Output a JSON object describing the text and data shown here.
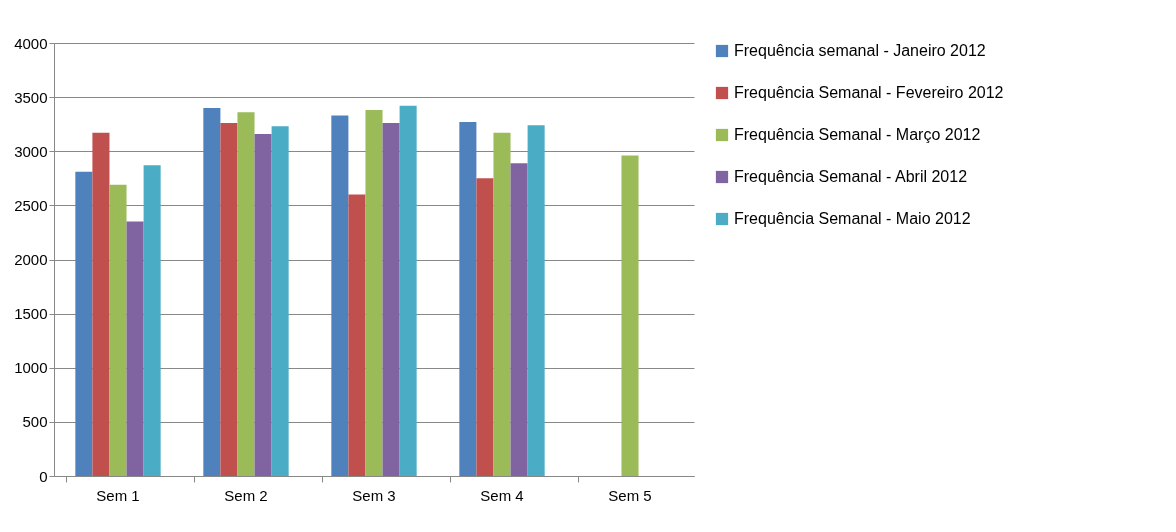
{
  "chart_data": {
    "type": "bar",
    "categories": [
      "Sem 1",
      "Sem 2",
      "Sem 3",
      "Sem 4",
      "Sem 5"
    ],
    "series": [
      {
        "name": "Frequência semanal - Janeiro 2012",
        "color": "#4f81bd",
        "values": [
          2810,
          3400,
          3330,
          3270,
          null
        ]
      },
      {
        "name": "Frequência Semanal - Fevereiro 2012",
        "color": "#c0504d",
        "values": [
          3170,
          3260,
          2600,
          2750,
          null
        ]
      },
      {
        "name": "Frequência Semanal - Março 2012",
        "color": "#9bbb59",
        "values": [
          2690,
          3360,
          3380,
          3170,
          2960
        ]
      },
      {
        "name": "Frequência Semanal - Abril 2012",
        "color": "#8064a2",
        "values": [
          2350,
          3160,
          3260,
          2890,
          null
        ]
      },
      {
        "name": "Frequência Semanal - Maio 2012",
        "color": "#4bacc6",
        "values": [
          2870,
          3230,
          3420,
          3240,
          null
        ]
      }
    ],
    "ylim": [
      0,
      4000
    ],
    "yticks": [
      0,
      500,
      1000,
      1500,
      2000,
      2500,
      3000,
      3500,
      4000
    ],
    "grid": "y",
    "legend": "right"
  }
}
